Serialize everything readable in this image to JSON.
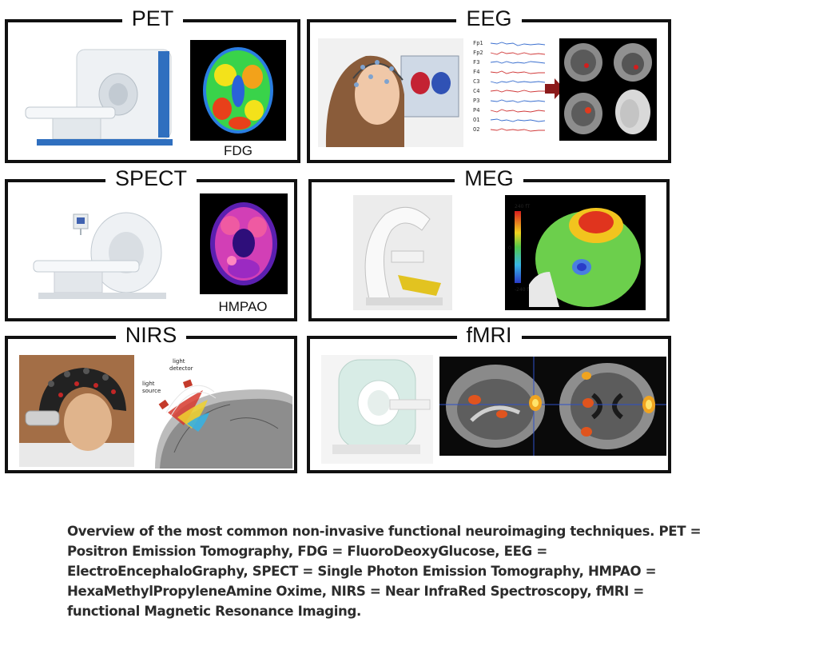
{
  "panels": {
    "pet": {
      "title": "PET",
      "sublabel": "FDG"
    },
    "eeg": {
      "title": "EEG",
      "channels": [
        "Fp1",
        "Fp2",
        "F3",
        "F4",
        "C3",
        "C4",
        "P3",
        "P4",
        "O1",
        "O2"
      ]
    },
    "spect": {
      "title": "SPECT",
      "sublabel": "HMPAO"
    },
    "meg": {
      "title": "MEG",
      "scale_top": "240 fT",
      "scale_mid": "0",
      "scale_bottom": "-240 fT"
    },
    "nirs": {
      "title": "NIRS",
      "detector_label_1": "light",
      "detector_label_2": "detector",
      "source_label_1": "light",
      "source_label_2": "source"
    },
    "fmri": {
      "title": "fMRI"
    }
  },
  "caption": {
    "lines": [
      "Overview of the most common non-invasive functional neuroimaging techniques. PET =",
      "Positron Emission Tomography, FDG = FluoroDeoxyGlucose, EEG =",
      "ElectroEncephaloGraphy, SPECT = Single Photon Emission Tomography, HMPAO =",
      "HexaMethylPropyleneAmine Oxime, NIRS = Near InfraRed Spectroscopy, fMRI =",
      "functional Magnetic Resonance Imaging."
    ]
  },
  "colors": {
    "frame": "#111111",
    "caption_text": "#2c2c2c",
    "scanner": "#e9eef2",
    "pet_blue": "#2f6fbf"
  }
}
